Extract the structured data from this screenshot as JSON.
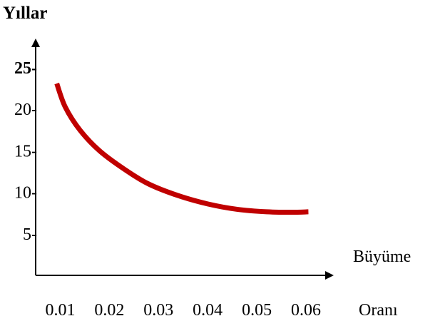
{
  "chart_data": {
    "type": "line",
    "ylabel": "Yıllar",
    "xlabel_line1": "Büyüme",
    "xlabel_line2": "Oranı",
    "x_ticks": [
      "0.01",
      "0.02",
      "0.03",
      "0.04",
      "0.05",
      "0.06"
    ],
    "y_ticks": [
      {
        "label": "25-",
        "value": 25,
        "bold": true
      },
      {
        "label": "20-",
        "value": 20,
        "bold": false
      },
      {
        "label": "15-",
        "value": 15,
        "bold": false
      },
      {
        "label": "10-",
        "value": 10,
        "bold": false
      },
      {
        "label": "5-",
        "value": 5,
        "bold": false
      }
    ],
    "series": [
      {
        "color": "#c00000",
        "points": [
          {
            "x": 0.0093,
            "y": 23.1
          },
          {
            "x": 0.011,
            "y": 20.3
          },
          {
            "x": 0.014,
            "y": 17.5
          },
          {
            "x": 0.018,
            "y": 15.0
          },
          {
            "x": 0.023,
            "y": 12.8
          },
          {
            "x": 0.028,
            "y": 11.0
          },
          {
            "x": 0.034,
            "y": 9.6
          },
          {
            "x": 0.04,
            "y": 8.6
          },
          {
            "x": 0.046,
            "y": 7.95
          },
          {
            "x": 0.052,
            "y": 7.65
          },
          {
            "x": 0.057,
            "y": 7.6
          },
          {
            "x": 0.0605,
            "y": 7.65
          }
        ]
      }
    ],
    "xlim": [
      0.005,
      0.0645
    ],
    "ylim": [
      0,
      28
    ],
    "legend": "none",
    "grid": false
  }
}
